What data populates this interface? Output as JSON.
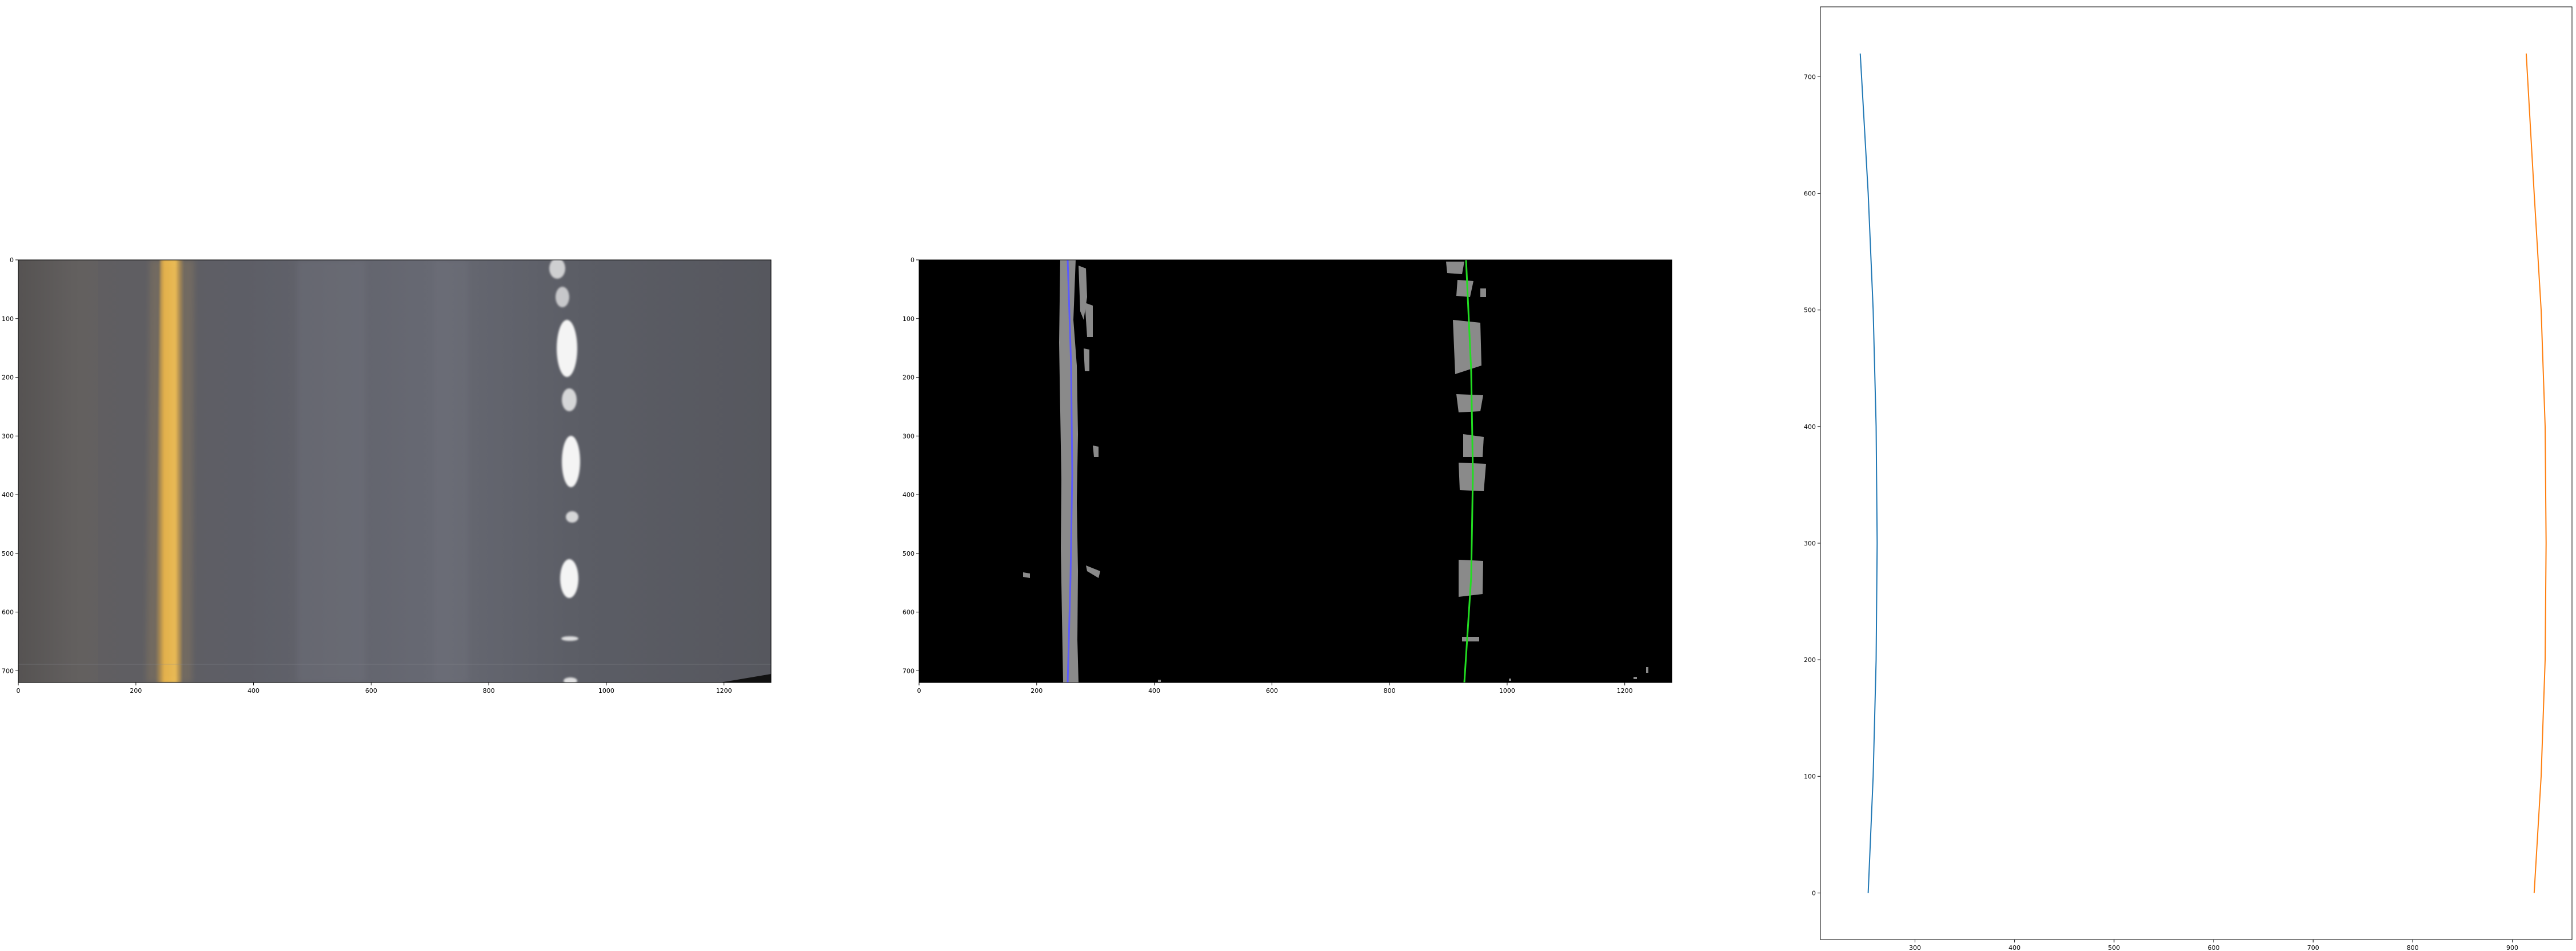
{
  "chart_data": [
    {
      "type": "image",
      "content": "perspective-warped road image: yellow left lane line, dashed white right lane line",
      "xlim": [
        0,
        1280
      ],
      "ylim": [
        720,
        0
      ],
      "xticks": [
        0,
        200,
        400,
        600,
        800,
        1000,
        1200
      ],
      "yticks": [
        0,
        100,
        200,
        300,
        400,
        500,
        600,
        700
      ],
      "colors": {
        "road": "#55565d",
        "yellow_line": "#e8b44a",
        "white_line": "#f4f4f4"
      }
    },
    {
      "type": "image",
      "content": "binary lane pixel mask (gray) with fitted lane lines: blue (left), green (right)",
      "xlim": [
        0,
        1280
      ],
      "ylim": [
        720,
        0
      ],
      "xticks": [
        0,
        200,
        400,
        600,
        800,
        1000,
        1200
      ],
      "yticks": [
        0,
        100,
        200,
        300,
        400,
        500,
        600,
        700
      ],
      "colors": {
        "background": "#000000",
        "pixels": "#8a8a8a",
        "left_fit": "#5a5aff",
        "right_fit": "#22dd22"
      }
    },
    {
      "type": "line",
      "xlim": [
        205,
        960
      ],
      "ylim": [
        -40,
        760
      ],
      "xticks": [
        300,
        400,
        500,
        600,
        700,
        800,
        900
      ],
      "yticks": [
        0,
        100,
        200,
        300,
        400,
        500,
        600,
        700
      ],
      "grid": false,
      "series": [
        {
          "color": "#1f77b4",
          "points": [
            [
              253,
              0
            ],
            [
              258,
              100
            ],
            [
              261,
              200
            ],
            [
              262,
              300
            ],
            [
              261,
              400
            ],
            [
              258,
              500
            ],
            [
              253,
              600
            ],
            [
              245,
              720
            ]
          ]
        },
        {
          "color": "#ff7f0e",
          "points": [
            [
              922,
              0
            ],
            [
              929,
              100
            ],
            [
              933,
              200
            ],
            [
              934,
              300
            ],
            [
              933,
              400
            ],
            [
              929,
              500
            ],
            [
              922,
              600
            ],
            [
              914,
              720
            ]
          ]
        }
      ]
    }
  ]
}
